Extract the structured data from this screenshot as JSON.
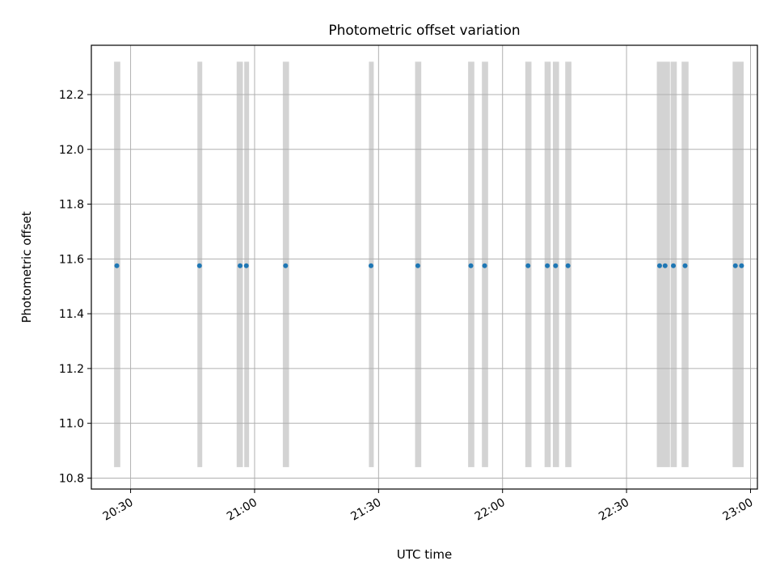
{
  "chart_data": {
    "type": "scatter",
    "title": "Photometric offset variation",
    "xlabel": "UTC time",
    "ylabel": "Photometric offset",
    "x_axis_type": "time",
    "x_range": [
      "20:20:30",
      "23:01:40"
    ],
    "x_ticks": [
      "20:30",
      "21:00",
      "21:30",
      "22:00",
      "22:30",
      "23:00"
    ],
    "ylim": [
      10.76,
      12.38
    ],
    "y_ticks": [
      10.8,
      11.0,
      11.2,
      11.4,
      11.6,
      11.8,
      12.0,
      12.2
    ],
    "y_tick_labels": [
      "10.8",
      "11.0",
      "11.2",
      "11.4",
      "11.6",
      "11.8",
      "12.0",
      "12.2"
    ],
    "grid": true,
    "marker_color": "#1f77b4",
    "band_color": "#d3d3d3",
    "shaded_bands": {
      "y_range": [
        10.84,
        12.32
      ],
      "intervals": [
        [
          "20:26:00",
          "20:27:30"
        ],
        [
          "20:46:10",
          "20:47:20"
        ],
        [
          "20:55:40",
          "20:57:10"
        ],
        [
          "20:57:30",
          "20:58:40"
        ],
        [
          "21:06:50",
          "21:08:20"
        ],
        [
          "21:27:40",
          "21:28:50"
        ],
        [
          "21:38:50",
          "21:40:20"
        ],
        [
          "21:51:40",
          "21:53:10"
        ],
        [
          "21:55:00",
          "21:56:30"
        ],
        [
          "22:05:30",
          "22:07:00"
        ],
        [
          "22:10:10",
          "22:11:40"
        ],
        [
          "22:12:10",
          "22:13:40"
        ],
        [
          "22:15:10",
          "22:16:40"
        ],
        [
          "22:37:20",
          "22:40:30"
        ],
        [
          "22:40:40",
          "22:42:10"
        ],
        [
          "22:43:20",
          "22:45:00"
        ],
        [
          "22:55:40",
          "22:58:20"
        ]
      ]
    },
    "points": {
      "x": [
        "20:26:40",
        "20:46:40",
        "20:56:30",
        "20:58:00",
        "21:07:30",
        "21:28:10",
        "21:39:30",
        "21:52:20",
        "21:55:40",
        "22:06:10",
        "22:10:50",
        "22:12:50",
        "22:15:50",
        "22:38:00",
        "22:39:20",
        "22:41:20",
        "22:44:10",
        "22:56:20",
        "22:57:50"
      ],
      "y": [
        11.575,
        11.575,
        11.575,
        11.575,
        11.575,
        11.575,
        11.575,
        11.575,
        11.575,
        11.575,
        11.575,
        11.575,
        11.575,
        11.575,
        11.575,
        11.575,
        11.575,
        11.575,
        11.575
      ]
    }
  }
}
